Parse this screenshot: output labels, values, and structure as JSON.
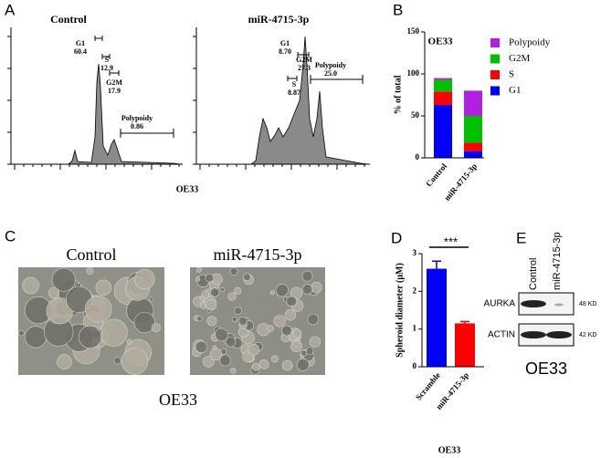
{
  "panel_letters": [
    "A",
    "B",
    "C",
    "D",
    "E"
  ],
  "panel_a": {
    "x_label": "OE33",
    "histograms": [
      {
        "title": "Control",
        "gates": [
          {
            "name": "G1",
            "value": "60.4"
          },
          {
            "name": "S",
            "value": "12.9"
          },
          {
            "name": "G2M",
            "value": "17.9"
          },
          {
            "name": "Polypoidy",
            "value": "0.86"
          }
        ]
      },
      {
        "title": "miR-4715-3p",
        "gates": [
          {
            "name": "G1",
            "value": "8.70"
          },
          {
            "name": "G2M",
            "value": "27.3"
          },
          {
            "name": "S",
            "value": "8.87"
          },
          {
            "name": "Polypoidy",
            "value": "25.0"
          }
        ]
      }
    ]
  },
  "panel_c": {
    "labels": [
      "Control",
      "miR-4715-3p"
    ],
    "caption": "OE33"
  },
  "panel_e": {
    "columns": [
      "Control",
      "miR-4715-3p"
    ],
    "rows": [
      {
        "protein": "AURKA",
        "size": "48 KD"
      },
      {
        "protein": "ACTIN",
        "size": "42 KD"
      }
    ],
    "caption": "OE33"
  },
  "chart_data": [
    {
      "type": "stacked_bar",
      "title": "OE33",
      "y_label": "% of total",
      "categories": [
        "Control",
        "miR-4715-3p"
      ],
      "series": [
        {
          "name": "G1",
          "color": "#0000ff",
          "values": [
            63,
            8
          ]
        },
        {
          "name": "S",
          "color": "#ff0000",
          "values": [
            16,
            10
          ]
        },
        {
          "name": "G2M",
          "color": "#00c000",
          "values": [
            14,
            32
          ]
        },
        {
          "name": "Polypoidy",
          "color": "#b020e0",
          "values": [
            2,
            30
          ]
        }
      ],
      "ylim": [
        0,
        150
      ],
      "yticks": [
        0,
        50,
        100,
        150
      ]
    },
    {
      "type": "bar",
      "y_label": "Spheroid diameter (μM)",
      "x_label": "OE33",
      "annotation": "***",
      "categories": [
        "Scramble",
        "miR-4715-3p"
      ],
      "values": [
        2.6,
        1.15
      ],
      "errors": [
        0.2,
        0.05
      ],
      "colors": [
        "#0000ff",
        "#ff0000"
      ],
      "ylim": [
        0,
        3
      ],
      "yticks": [
        0,
        1,
        2,
        3
      ]
    }
  ]
}
